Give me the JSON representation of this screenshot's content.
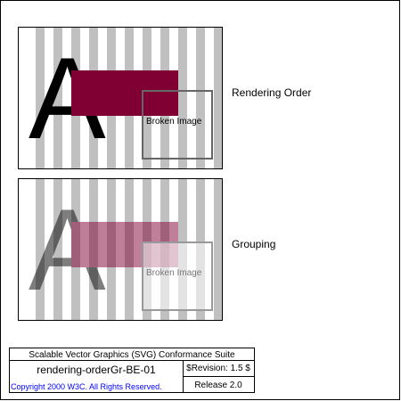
{
  "colors": {
    "stripe": "#c0c0c0",
    "rect": "#800033",
    "letter": "#000000",
    "image_border": "#666666",
    "copyright": "#0000ff"
  },
  "panels": [
    {
      "letter": "A",
      "image_text": "Broken Image",
      "label": "Rendering Order"
    },
    {
      "letter": "A",
      "image_text": "Broken Image",
      "label": "Grouping"
    }
  ],
  "footer": {
    "suite_title": "Scalable Vector Graphics (SVG) Conformance Suite",
    "test_name": "rendering-orderGr-BE-01",
    "revision": "$Revision: 1.5 $",
    "copyright": "Copyright 2000 W3C. All Rights Reserved.",
    "release": "Release 2.0"
  }
}
